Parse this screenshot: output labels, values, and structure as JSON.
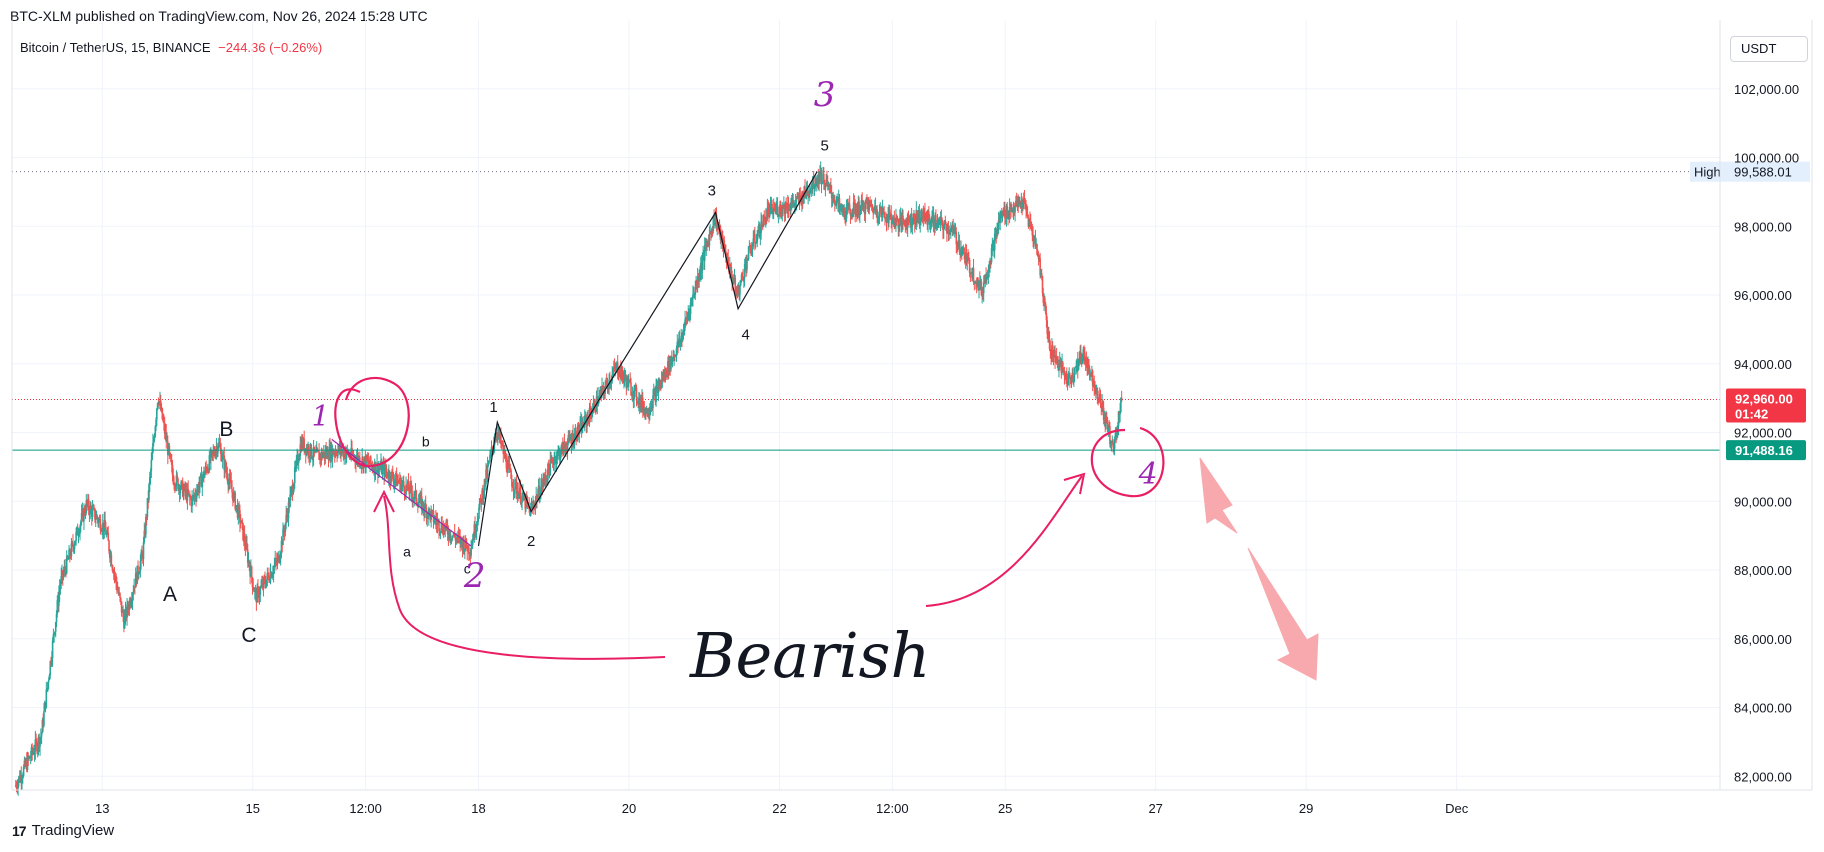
{
  "header": {
    "published": "BTC-XLM published on TradingView.com, Nov 26, 2024 15:28 UTC",
    "symbol": "Bitcoin / TetherUS, 15, BINANCE",
    "change": "−244.36 (−0.26%)",
    "currency_button": "USDT"
  },
  "footer": {
    "brand": "TradingView",
    "logo_icon": "tradingview-logo-icon"
  },
  "colors": {
    "up": "#26a69a",
    "down": "#ef5350",
    "wave": "#9c27b0",
    "annotation": "#e91e63",
    "arrow": "#f8a0a6",
    "support_line": "#089981",
    "current_price": "#f23645"
  },
  "chart_data": {
    "type": "candlestick",
    "interval": "15",
    "ylim": [
      81600,
      104000
    ],
    "y_ticks": [
      82000,
      84000,
      86000,
      88000,
      90000,
      92000,
      94000,
      96000,
      98000,
      100000,
      102000
    ],
    "y_tick_labels": [
      "82,000.00",
      "84,000.00",
      "86,000.00",
      "88,000.00",
      "90,000.00",
      "92,000.00",
      "94,000.00",
      "96,000.00",
      "98,000.00",
      "100,000.00",
      "102,000.00"
    ],
    "x_tick_labels": [
      "13",
      "15",
      "12:00",
      "18",
      "20",
      "22",
      "12:00",
      "25",
      "27",
      "29",
      "Dec"
    ],
    "x_tick_days": [
      13,
      15,
      16.5,
      18,
      20,
      22,
      23.5,
      25,
      27,
      29,
      31
    ],
    "x_range_days": [
      11.8,
      34.5
    ],
    "price_path": [
      [
        11.85,
        81700
      ],
      [
        12.2,
        83200
      ],
      [
        12.45,
        87600
      ],
      [
        12.8,
        89900
      ],
      [
        13.05,
        89200
      ],
      [
        13.3,
        86500
      ],
      [
        13.55,
        88500
      ],
      [
        13.75,
        93100
      ],
      [
        13.95,
        90700
      ],
      [
        14.2,
        90000
      ],
      [
        14.55,
        91700
      ],
      [
        14.85,
        89400
      ],
      [
        15.05,
        87200
      ],
      [
        15.35,
        88300
      ],
      [
        15.65,
        91700
      ],
      [
        15.85,
        91300
      ],
      [
        16.15,
        91500
      ],
      [
        16.45,
        91200
      ],
      [
        16.75,
        90900
      ],
      [
        17.1,
        90300
      ],
      [
        17.45,
        89400
      ],
      [
        17.9,
        88600
      ],
      [
        18.25,
        92100
      ],
      [
        18.45,
        90600
      ],
      [
        18.7,
        89700
      ],
      [
        19.0,
        91200
      ],
      [
        19.4,
        92200
      ],
      [
        19.85,
        93900
      ],
      [
        20.25,
        92600
      ],
      [
        20.7,
        94700
      ],
      [
        21.15,
        98300
      ],
      [
        21.45,
        96000
      ],
      [
        21.6,
        97200
      ],
      [
        21.85,
        98400
      ],
      [
        22.25,
        98700
      ],
      [
        22.55,
        99500
      ],
      [
        22.85,
        98400
      ],
      [
        23.2,
        98600
      ],
      [
        23.6,
        98100
      ],
      [
        23.9,
        98300
      ],
      [
        24.3,
        97900
      ],
      [
        24.7,
        96100
      ],
      [
        24.95,
        98300
      ],
      [
        25.25,
        98700
      ],
      [
        25.45,
        97200
      ],
      [
        25.6,
        94500
      ],
      [
        25.85,
        93500
      ],
      [
        26.05,
        94300
      ],
      [
        26.25,
        93100
      ],
      [
        26.45,
        91500
      ],
      [
        26.55,
        92960
      ]
    ],
    "volatility": 450,
    "seed": 7,
    "high": {
      "label": "High",
      "value_label": "99,588.01",
      "value": 99588.01
    },
    "current_price": {
      "value": 92960,
      "value_label": "92,960.00",
      "countdown": "01:42"
    },
    "support": {
      "value": 91488.16,
      "value_label": "91,488.16"
    },
    "wave_lines": [
      {
        "points": [
          [
            18.0,
            88700
          ],
          [
            18.25,
            92300
          ],
          [
            18.7,
            89700
          ],
          [
            19.7,
            93300
          ],
          [
            21.15,
            98400
          ],
          [
            21.45,
            95600
          ],
          [
            22.5,
            99588
          ]
        ]
      },
      {
        "points": [
          [
            16.05,
            91800
          ],
          [
            17.9,
            88700
          ]
        ],
        "purple": true
      }
    ],
    "wave_labels": [
      {
        "text": "A",
        "x": 13.9,
        "y": 87100,
        "size": 21
      },
      {
        "text": "B",
        "x": 14.65,
        "y": 91900,
        "size": 21
      },
      {
        "text": "C",
        "x": 14.95,
        "y": 85900,
        "size": 21
      },
      {
        "text": "a",
        "x": 17.05,
        "y": 88400,
        "size": 14
      },
      {
        "text": "b",
        "x": 17.3,
        "y": 91600,
        "size": 14
      },
      {
        "text": "c",
        "x": 17.85,
        "y": 87900,
        "size": 14
      },
      {
        "text": "1",
        "x": 18.2,
        "y": 92600,
        "size": 15
      },
      {
        "text": "2",
        "x": 18.7,
        "y": 88700,
        "size": 15
      },
      {
        "text": "3",
        "x": 21.1,
        "y": 98900,
        "size": 15
      },
      {
        "text": "4",
        "x": 21.55,
        "y": 94700,
        "size": 15
      },
      {
        "text": "5",
        "x": 22.6,
        "y": 100200,
        "size": 15
      }
    ],
    "major_wave_labels": [
      {
        "text": "1",
        "x": 15.9,
        "y": 92200,
        "size": 28
      },
      {
        "text": "2",
        "x": 17.95,
        "y": 87500,
        "size": 34
      },
      {
        "text": "3",
        "x": 22.6,
        "y": 101500,
        "size": 34
      },
      {
        "text": "4",
        "x": 26.9,
        "y": 90500,
        "size": 30
      }
    ],
    "annotation": "Bearish"
  }
}
